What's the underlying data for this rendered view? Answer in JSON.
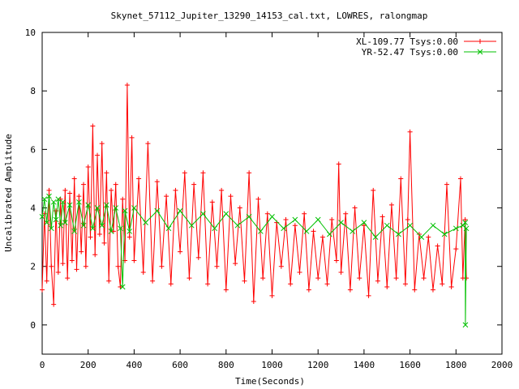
{
  "chart_data": {
    "type": "line",
    "title": "Skynet_57112_Jupiter_13290_14153_cal.txt, LOWRES, ralongmap",
    "xlabel": "Time(Seconds)",
    "ylabel": "Uncalibrated Amplitude",
    "xlim": [
      0,
      2000
    ],
    "ylim": [
      -1,
      10
    ],
    "xticks": [
      0,
      200,
      400,
      600,
      800,
      1000,
      1200,
      1400,
      1600,
      1800,
      2000
    ],
    "yticks": [
      0,
      2,
      4,
      6,
      8,
      10
    ],
    "grid": false,
    "legend_position": "top-right",
    "series": [
      {
        "name": "XL-109.77 Tsys:0.00",
        "color": "#ff0000",
        "marker": "plus",
        "x": [
          0,
          10,
          20,
          30,
          40,
          50,
          60,
          70,
          80,
          90,
          100,
          110,
          120,
          130,
          140,
          150,
          160,
          170,
          180,
          190,
          200,
          210,
          220,
          230,
          240,
          250,
          260,
          270,
          280,
          290,
          300,
          310,
          320,
          330,
          340,
          350,
          360,
          370,
          380,
          390,
          400,
          420,
          440,
          460,
          480,
          500,
          520,
          540,
          560,
          580,
          600,
          620,
          640,
          660,
          680,
          700,
          720,
          740,
          760,
          780,
          800,
          820,
          840,
          860,
          880,
          900,
          920,
          940,
          960,
          980,
          1000,
          1020,
          1040,
          1060,
          1080,
          1100,
          1120,
          1140,
          1160,
          1180,
          1200,
          1220,
          1240,
          1260,
          1280,
          1290,
          1300,
          1320,
          1340,
          1360,
          1380,
          1400,
          1420,
          1440,
          1460,
          1480,
          1500,
          1520,
          1540,
          1560,
          1580,
          1590,
          1600,
          1620,
          1640,
          1660,
          1680,
          1700,
          1720,
          1740,
          1760,
          1780,
          1800,
          1820,
          1830,
          1840,
          1845
        ],
        "y": [
          1.2,
          3.8,
          1.5,
          4.6,
          2.0,
          0.7,
          3.9,
          1.8,
          4.3,
          2.1,
          4.6,
          1.6,
          4.5,
          2.2,
          5.0,
          1.9,
          4.4,
          2.5,
          4.8,
          2.0,
          5.4,
          3.0,
          6.8,
          2.4,
          5.8,
          3.1,
          6.2,
          2.8,
          5.2,
          1.5,
          4.6,
          3.2,
          4.8,
          2.0,
          1.3,
          4.3,
          2.2,
          8.2,
          3.0,
          6.4,
          2.2,
          5.0,
          1.8,
          6.2,
          1.5,
          4.9,
          2.0,
          4.4,
          1.4,
          4.6,
          2.5,
          5.2,
          1.6,
          4.8,
          2.3,
          5.2,
          1.4,
          4.2,
          2.0,
          4.6,
          1.2,
          4.4,
          2.1,
          4.0,
          1.5,
          5.2,
          0.8,
          4.3,
          1.6,
          3.8,
          1.0,
          3.5,
          2.0,
          3.6,
          1.4,
          3.4,
          1.8,
          3.8,
          1.2,
          3.2,
          1.6,
          3.0,
          1.4,
          3.6,
          2.2,
          5.5,
          1.8,
          3.8,
          1.2,
          4.0,
          1.6,
          3.4,
          1.0,
          4.6,
          1.5,
          3.7,
          1.3,
          4.1,
          1.6,
          5.0,
          1.4,
          3.6,
          6.6,
          1.2,
          3.1,
          1.6,
          3.0,
          1.2,
          2.7,
          1.4,
          4.8,
          1.3,
          2.6,
          5.0,
          1.6,
          3.6,
          1.6
        ]
      },
      {
        "name": "YR-52.47 Tsys:0.00",
        "color": "#00c000",
        "marker": "cross",
        "x": [
          0,
          10,
          20,
          30,
          40,
          50,
          60,
          70,
          80,
          90,
          100,
          120,
          140,
          160,
          180,
          200,
          220,
          240,
          260,
          280,
          300,
          320,
          340,
          350,
          360,
          380,
          400,
          450,
          500,
          550,
          600,
          650,
          700,
          750,
          800,
          850,
          900,
          950,
          1000,
          1050,
          1100,
          1150,
          1200,
          1250,
          1300,
          1350,
          1400,
          1450,
          1500,
          1550,
          1600,
          1650,
          1700,
          1750,
          1800,
          1830,
          1840,
          1841,
          1845
        ],
        "y": [
          3.7,
          4.3,
          3.5,
          4.4,
          3.3,
          4.2,
          3.6,
          4.3,
          3.4,
          4.2,
          3.5,
          4.1,
          3.2,
          4.2,
          3.4,
          4.1,
          3.3,
          4.0,
          3.4,
          4.1,
          3.2,
          4.0,
          3.3,
          1.3,
          3.9,
          3.2,
          4.0,
          3.5,
          3.9,
          3.3,
          3.9,
          3.4,
          3.8,
          3.3,
          3.8,
          3.4,
          3.7,
          3.2,
          3.7,
          3.3,
          3.6,
          3.2,
          3.6,
          3.1,
          3.5,
          3.2,
          3.5,
          3.0,
          3.4,
          3.1,
          3.4,
          3.0,
          3.4,
          3.1,
          3.3,
          3.4,
          3.5,
          0.0,
          3.3
        ]
      }
    ]
  }
}
